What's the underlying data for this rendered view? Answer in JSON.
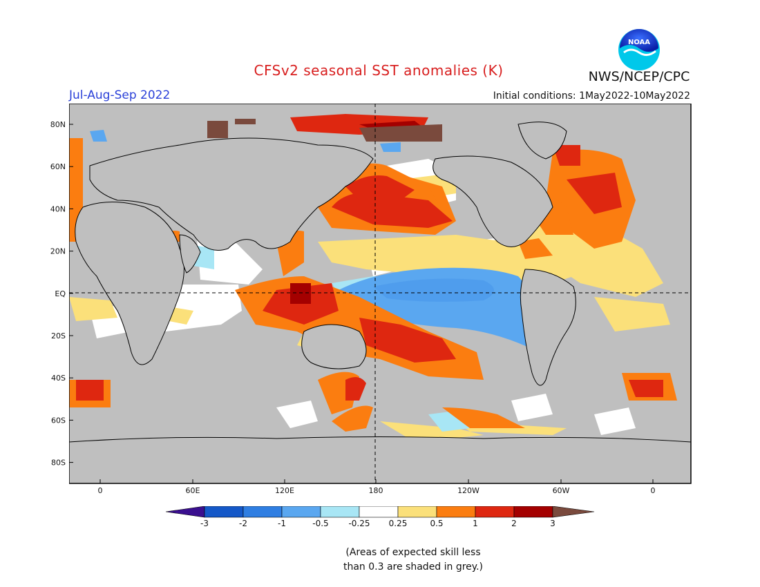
{
  "title": "CFSv2 seasonal SST anomalies (K)",
  "agency": "NWS/NCEP/CPC",
  "logo_text": "NOAA",
  "period": "Jul-Aug-Sep 2022",
  "initial_conditions": "Initial conditions: 1May2022-10May2022",
  "lon_ticks": [
    "0",
    "60E",
    "120E",
    "180",
    "120W",
    "60W",
    "0"
  ],
  "lat_ticks": [
    "80N",
    "60N",
    "40N",
    "20N",
    "EQ",
    "20S",
    "40S",
    "60S",
    "80S"
  ],
  "colorbar": {
    "tick_labels": [
      "-3",
      "-2",
      "-1",
      "-0.5",
      "-0.25",
      "0.25",
      "0.5",
      "1",
      "2",
      "3"
    ],
    "colors": [
      "#3a0f8f",
      "#1458c8",
      "#2f7ee2",
      "#5aa7f0",
      "#a8e6f5",
      "#ffffff",
      "#fbe07a",
      "#fb7d10",
      "#de2710",
      "#a40000",
      "#7a4a3d"
    ]
  },
  "note_line1": "(Areas of expected skill less",
  "note_line2": "than 0.3 are shaded in grey.)",
  "colors": {
    "grey_mask": "#bfbfbf",
    "title": "#d81e1e",
    "period": "#2a40d8"
  }
}
